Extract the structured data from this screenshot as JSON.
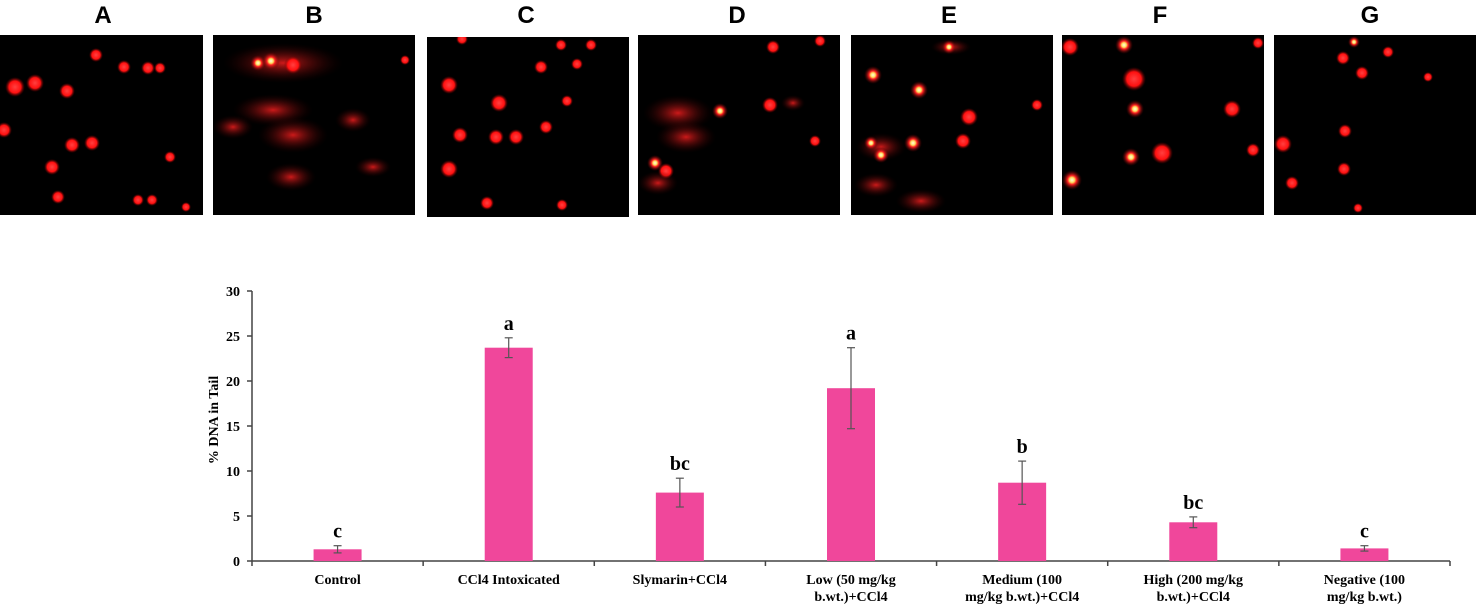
{
  "panels": [
    {
      "label": "A"
    },
    {
      "label": "B"
    },
    {
      "label": "C"
    },
    {
      "label": "D"
    },
    {
      "label": "E"
    },
    {
      "label": "F"
    },
    {
      "label": "G"
    }
  ],
  "colors": {
    "bar": "#f0479b",
    "cell": "#ff1a1a",
    "cell_core": "#fff5b0",
    "panel_bg": "#000000"
  },
  "chart_data": {
    "type": "bar",
    "categories": [
      [
        "Control"
      ],
      [
        "CCl4 Intoxicated"
      ],
      [
        "Slymarin+CCl4"
      ],
      [
        "Low (50 mg/kg",
        "b.wt.)+CCl4"
      ],
      [
        "Medium (100",
        "mg/kg b.wt.)+CCl4"
      ],
      [
        "High (200 mg/kg",
        "b.wt.)+CCl4"
      ],
      [
        "Negative (100",
        "mg/kg b.wt.)"
      ]
    ],
    "values": [
      1.3,
      23.7,
      7.6,
      19.2,
      8.7,
      4.3,
      1.4
    ],
    "errors": [
      0.4,
      1.1,
      1.6,
      4.5,
      2.4,
      0.6,
      0.3
    ],
    "significance": [
      "c",
      "a",
      "bc",
      "a",
      "b",
      "bc",
      "c"
    ],
    "ylabel": "% DNA in Tail",
    "ylim": [
      0,
      30
    ],
    "yticks": [
      0,
      5,
      10,
      15,
      20,
      25,
      30
    ],
    "grid": false
  }
}
